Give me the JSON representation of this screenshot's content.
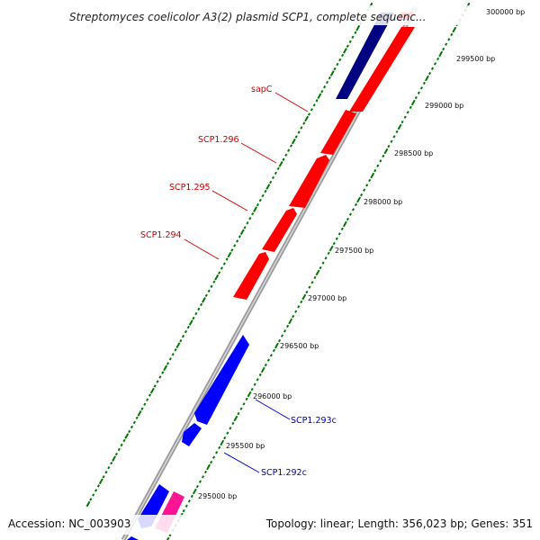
{
  "title": "Streptomyces coelicolor A3(2) plasmid SCP1, complete sequenc...",
  "footer": {
    "accession": "Accession: NC_003903",
    "summary": "Topology: linear; Length: 356,023 bp; Genes: 351"
  },
  "colors": {
    "forward": "#ff0000",
    "reverse": "#0000ff",
    "reverse_dark": "#000080",
    "rna": "#ff1493",
    "ticks": "#007700",
    "backbone": "#888888",
    "forward_label": "#cc0000",
    "reverse_label": "#0000aa"
  },
  "ruler": [
    {
      "label": "295000 bp"
    },
    {
      "label": "295500 bp"
    },
    {
      "label": "296000 bp"
    },
    {
      "label": "296500 bp"
    },
    {
      "label": "297000 bp"
    },
    {
      "label": "297500 bp"
    },
    {
      "label": "298000 bp"
    },
    {
      "label": "298500 bp"
    },
    {
      "label": "299000 bp"
    },
    {
      "label": "299500 bp"
    },
    {
      "label": "300000 bp"
    }
  ],
  "gene_labels": [
    {
      "name": "sapC",
      "strand": "forward"
    },
    {
      "name": "SCP1.296",
      "strand": "forward"
    },
    {
      "name": "SCP1.295",
      "strand": "forward"
    },
    {
      "name": "SCP1.294",
      "strand": "forward"
    },
    {
      "name": "SCP1.293c",
      "strand": "reverse"
    },
    {
      "name": "SCP1.292c",
      "strand": "reverse"
    }
  ]
}
